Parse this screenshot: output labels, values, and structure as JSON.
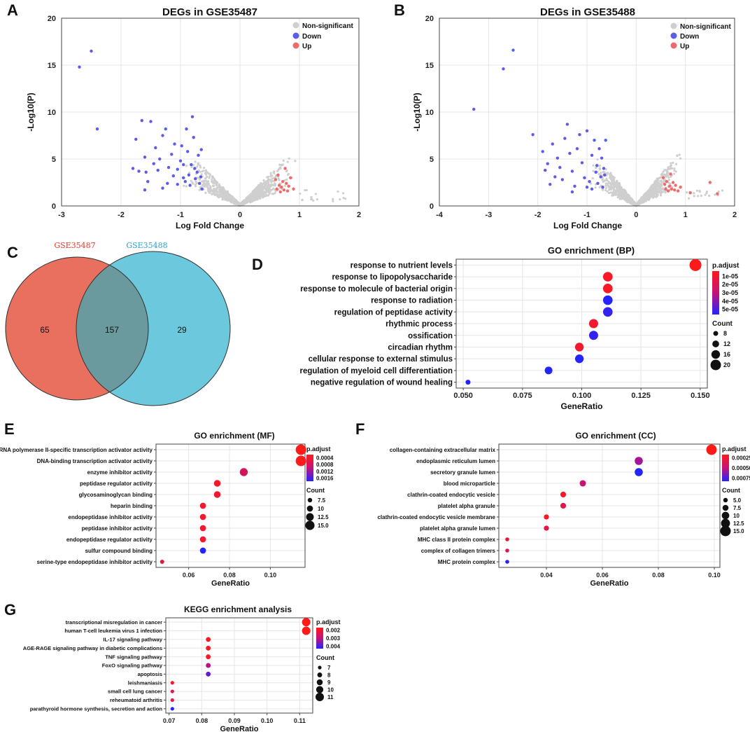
{
  "colors": {
    "up": "#ef6b6b",
    "down": "#5c5ce6",
    "ns": "#cfcfcf",
    "venn_left": "#e9705f",
    "venn_right": "#6cc8dc",
    "venn_overlap": "#6b9a9e",
    "venn_left_title": "#e23c2a",
    "venn_right_title": "#2aa3c8"
  },
  "panels": {
    "A": "A",
    "B": "B",
    "C": "C",
    "D": "D",
    "E": "E",
    "F": "F",
    "G": "G"
  },
  "chart_data": [
    {
      "id": "A",
      "type": "scatter",
      "title": "DEGs in GSE35487",
      "xlabel": "Log Fold Change",
      "ylabel": "-Log10(P)",
      "xlim": [
        -3,
        2
      ],
      "ylim": [
        0,
        20
      ],
      "xticks": [
        -3,
        -2,
        -1,
        0,
        1,
        2
      ],
      "yticks": [
        0,
        5,
        10,
        15,
        20
      ],
      "legend": [
        "Non-significant",
        "Down",
        "Up"
      ],
      "down_points": [
        [
          -2.7,
          14.8
        ],
        [
          -2.5,
          16.5
        ],
        [
          -2.4,
          8.2
        ],
        [
          -1.8,
          4.0
        ],
        [
          -1.75,
          7.1
        ],
        [
          -1.7,
          3.7
        ],
        [
          -1.65,
          9.1
        ],
        [
          -1.6,
          5.2
        ],
        [
          -1.58,
          3.6
        ],
        [
          -1.55,
          2.6
        ],
        [
          -1.5,
          9.0
        ],
        [
          -1.45,
          4.5
        ],
        [
          -1.42,
          6.2
        ],
        [
          -1.38,
          3.8
        ],
        [
          -1.35,
          5.0
        ],
        [
          -1.3,
          7.5
        ],
        [
          -1.25,
          8.2
        ],
        [
          -1.22,
          2.4
        ],
        [
          -1.2,
          4.1
        ],
        [
          -1.15,
          5.5
        ],
        [
          -1.12,
          3.2
        ],
        [
          -1.1,
          6.6
        ],
        [
          -1.05,
          2.3
        ],
        [
          -1.0,
          4.8
        ],
        [
          -0.98,
          6.4
        ],
        [
          -0.95,
          3.0
        ],
        [
          -0.92,
          2.6
        ],
        [
          -0.9,
          8.2
        ],
        [
          -0.88,
          5.8
        ],
        [
          -0.86,
          3.3
        ],
        [
          -0.84,
          2.2
        ],
        [
          -0.82,
          4.4
        ],
        [
          -0.8,
          9.5
        ],
        [
          -0.78,
          7.3
        ],
        [
          -0.76,
          4.0
        ],
        [
          -0.75,
          2.9
        ],
        [
          -0.72,
          3.6
        ],
        [
          -0.7,
          5.4
        ],
        [
          -0.68,
          2.4
        ],
        [
          -0.66,
          3.1
        ],
        [
          -0.65,
          6.0
        ],
        [
          -0.64,
          1.8
        ],
        [
          -1.6,
          1.7
        ],
        [
          -1.3,
          1.9
        ],
        [
          -1.05,
          3.9
        ],
        [
          -0.95,
          4.4
        ]
      ],
      "up_points": [
        [
          0.6,
          2.8
        ],
        [
          0.62,
          1.8
        ],
        [
          0.64,
          3.3
        ],
        [
          0.66,
          2.2
        ],
        [
          0.68,
          1.5
        ],
        [
          0.7,
          2.0
        ],
        [
          0.72,
          2.6
        ],
        [
          0.74,
          1.7
        ],
        [
          0.76,
          4.0
        ],
        [
          0.78,
          2.4
        ],
        [
          0.8,
          1.6
        ],
        [
          0.82,
          2.1
        ],
        [
          0.85,
          3.0
        ],
        [
          0.9,
          1.8
        ]
      ]
    },
    {
      "id": "B",
      "type": "scatter",
      "title": "DEGs in GSE35488",
      "xlabel": "Log Fold Change",
      "ylabel": "-Log10(P)",
      "xlim": [
        -4,
        2
      ],
      "ylim": [
        0,
        20
      ],
      "xticks": [
        -4,
        -3,
        -2,
        -1,
        0,
        1,
        2
      ],
      "yticks": [
        0,
        5,
        10,
        15,
        20
      ],
      "legend": [
        "Non-significant",
        "Down",
        "Up"
      ],
      "down_points": [
        [
          -3.3,
          10.3
        ],
        [
          -2.7,
          14.6
        ],
        [
          -2.5,
          16.6
        ],
        [
          -2.1,
          7.6
        ],
        [
          -1.9,
          5.8
        ],
        [
          -1.85,
          3.8
        ],
        [
          -1.8,
          4.5
        ],
        [
          -1.75,
          2.3
        ],
        [
          -1.7,
          6.6
        ],
        [
          -1.65,
          3.1
        ],
        [
          -1.6,
          5.1
        ],
        [
          -1.55,
          4.1
        ],
        [
          -1.5,
          2.8
        ],
        [
          -1.45,
          7.2
        ],
        [
          -1.4,
          8.7
        ],
        [
          -1.35,
          5.6
        ],
        [
          -1.3,
          3.7
        ],
        [
          -1.25,
          2.1
        ],
        [
          -1.2,
          6.1
        ],
        [
          -1.15,
          7.6
        ],
        [
          -1.1,
          4.6
        ],
        [
          -1.05,
          3.0
        ],
        [
          -1.0,
          8.0
        ],
        [
          -0.95,
          2.6
        ],
        [
          -0.9,
          5.4
        ],
        [
          -0.85,
          7.0
        ],
        [
          -0.82,
          3.6
        ],
        [
          -0.8,
          4.3
        ],
        [
          -0.78,
          2.4
        ],
        [
          -0.75,
          6.1
        ],
        [
          -0.72,
          3.1
        ],
        [
          -0.7,
          5.1
        ],
        [
          -0.68,
          2.0
        ],
        [
          -0.66,
          4.0
        ],
        [
          -0.64,
          3.3
        ],
        [
          -0.62,
          7.0
        ],
        [
          -1.3,
          1.5
        ],
        [
          -1.0,
          2.0
        ],
        [
          -0.9,
          1.8
        ]
      ],
      "up_points": [
        [
          0.55,
          3.0
        ],
        [
          0.58,
          2.3
        ],
        [
          0.6,
          1.8
        ],
        [
          0.62,
          2.6
        ],
        [
          0.65,
          1.6
        ],
        [
          0.68,
          2.1
        ],
        [
          0.7,
          3.4
        ],
        [
          0.72,
          1.8
        ],
        [
          0.75,
          2.5
        ],
        [
          0.78,
          1.7
        ],
        [
          0.8,
          2.2
        ],
        [
          0.85,
          1.6
        ],
        [
          0.9,
          2.0
        ],
        [
          1.1,
          1.4
        ],
        [
          1.5,
          2.5
        ],
        [
          1.65,
          1.3
        ]
      ]
    },
    {
      "id": "C",
      "type": "venn",
      "sets": [
        "GSE35487",
        "GSE35488"
      ],
      "counts": {
        "left_only": "65",
        "both": "157",
        "right_only": "29"
      }
    },
    {
      "id": "D",
      "type": "scatter",
      "title": "GO enrichment (BP)",
      "xlabel": "GeneRatio",
      "xlim": [
        0.047,
        0.153
      ],
      "xticks": [
        "0.050",
        "0.075",
        "0.100",
        "0.125",
        "0.150"
      ],
      "terms": [
        "response to nutrient levels",
        "response to lipopolysaccharide",
        "response to molecule of bacterial origin",
        "response to radiation",
        "regulation of peptidase activity",
        "rhythmic process",
        "ossification",
        "circadian rhythm",
        "cellular response to external stimulus",
        "regulation of myeloid cell differentiation",
        "negative regulation of wound healing"
      ],
      "gene_ratio": [
        0.148,
        0.111,
        0.111,
        0.111,
        0.111,
        0.105,
        0.105,
        0.099,
        0.099,
        0.086,
        0.052
      ],
      "count": [
        23,
        18,
        18,
        18,
        18,
        17,
        17,
        16,
        16,
        14,
        8
      ],
      "padjust_fraction": [
        0.0,
        0.05,
        0.05,
        1.0,
        0.95,
        0.1,
        0.95,
        0.1,
        1.0,
        1.0,
        1.0
      ],
      "legend_padjust_title": "p.adjust",
      "legend_padjust": [
        "1e-05",
        "2e-05",
        "3e-05",
        "4e-05",
        "5e-05"
      ],
      "legend_count_title": "Count",
      "legend_count": [
        "8",
        "12",
        "16",
        "20"
      ],
      "legend_count_values": [
        8,
        12,
        16,
        20
      ]
    },
    {
      "id": "E",
      "type": "scatter",
      "title": "GO enrichment (MF)",
      "xlabel": "GeneRatio",
      "xlim": [
        0.044,
        0.117
      ],
      "xticks": [
        "0.06",
        "0.08",
        "0.10"
      ],
      "terms": [
        "RNA polymerase II-specific transcription activator activity",
        "DNA-binding transcription activator activity",
        "enzyme inhibitor activity",
        "peptidase regulator activity",
        "glycosaminoglycan binding",
        "heparin binding",
        "endopeptidase inhibitor activity",
        "peptidase inhibitor activity",
        "endopeptidase regulator activity",
        "sulfur compound binding",
        "serine-type endopeptidase inhibitor activity"
      ],
      "gene_ratio": [
        0.115,
        0.115,
        0.087,
        0.074,
        0.074,
        0.067,
        0.067,
        0.067,
        0.067,
        0.067,
        0.047
      ],
      "count": [
        17,
        17,
        13,
        11,
        11,
        10,
        10,
        10,
        10,
        10,
        7
      ],
      "padjust_fraction": [
        0.0,
        0.0,
        0.35,
        0.08,
        0.12,
        0.1,
        0.1,
        0.1,
        0.1,
        1.0,
        0.2
      ],
      "legend_padjust_title": "p.adjust",
      "legend_padjust": [
        "0.0004",
        "0.0008",
        "0.0012",
        "0.0016"
      ],
      "legend_count_title": "Count",
      "legend_count": [
        "7.5",
        "10",
        "12.5",
        "15.0"
      ],
      "legend_count_values": [
        7.5,
        10,
        12.5,
        15
      ]
    },
    {
      "id": "F",
      "type": "scatter",
      "title": "GO enrichment (CC)",
      "xlabel": "GeneRatio",
      "xlim": [
        0.023,
        0.102
      ],
      "xticks": [
        "0.04",
        "0.06",
        "0.08",
        "0.10"
      ],
      "terms": [
        "collagen-containing extracellular matrix",
        "endoplasmic reticulum lumen",
        "secretory granule lumen",
        "blood microparticle",
        "clathrin-coated endocytic vesicle",
        "platelet alpha granule",
        "clathrin-coated endocytic vesicle membrane",
        "platelet alpha granule lumen",
        "MHC class II protein complex",
        "complex of collagen trimers",
        "MHC protein complex"
      ],
      "gene_ratio": [
        0.099,
        0.073,
        0.073,
        0.053,
        0.046,
        0.046,
        0.04,
        0.04,
        0.026,
        0.026,
        0.026
      ],
      "count": [
        15,
        11,
        11,
        8,
        7,
        7,
        6,
        6,
        4,
        4,
        4
      ],
      "padjust_fraction": [
        0.0,
        0.6,
        1.0,
        0.45,
        0.05,
        0.25,
        0.05,
        0.25,
        0.2,
        0.3,
        1.0
      ],
      "legend_padjust_title": "p.adjust",
      "legend_padjust": [
        "0.00025",
        "0.00050",
        "0.00075"
      ],
      "legend_count_title": "Count",
      "legend_count": [
        "5.0",
        "7.5",
        "10",
        "12.5",
        "15.0"
      ],
      "legend_count_values": [
        5,
        7.5,
        10,
        12.5,
        15
      ]
    },
    {
      "id": "G",
      "type": "scatter",
      "title": "KEGG enrichment analysis",
      "xlabel": "GeneRatio",
      "xlim": [
        0.069,
        0.114
      ],
      "xticks": [
        "0.07",
        "0.08",
        "0.09",
        "0.10",
        "0.11"
      ],
      "terms": [
        "transcriptional misregulation in cancer",
        "human T-cell leukemia virus 1 infection",
        "IL-17 signaling pathway",
        "AGE-RAGE signaling pathway in diabetic complications",
        "TNF signaling pathway",
        "FoxO signaling pathway",
        "apoptosis",
        "leishmaniasis",
        "small cell lung cancer",
        "reheumatoid arthritis",
        "parathyroid hormone synthesis, secretion and action"
      ],
      "gene_ratio": [
        0.112,
        0.112,
        0.082,
        0.082,
        0.082,
        0.082,
        0.082,
        0.071,
        0.071,
        0.071,
        0.071
      ],
      "count": [
        11,
        11,
        8,
        8,
        8,
        8,
        8,
        7,
        7,
        7,
        7
      ],
      "padjust_fraction": [
        0.0,
        0.0,
        0.05,
        0.05,
        0.05,
        0.55,
        0.8,
        0.05,
        0.25,
        0.25,
        1.0
      ],
      "legend_padjust_title": "p.adjust",
      "legend_padjust": [
        "0.002",
        "0.003",
        "0.004"
      ],
      "legend_count_title": "Count",
      "legend_count": [
        "7",
        "8",
        "9",
        "10",
        "11"
      ],
      "legend_count_values": [
        7,
        8,
        9,
        10,
        11
      ]
    }
  ]
}
